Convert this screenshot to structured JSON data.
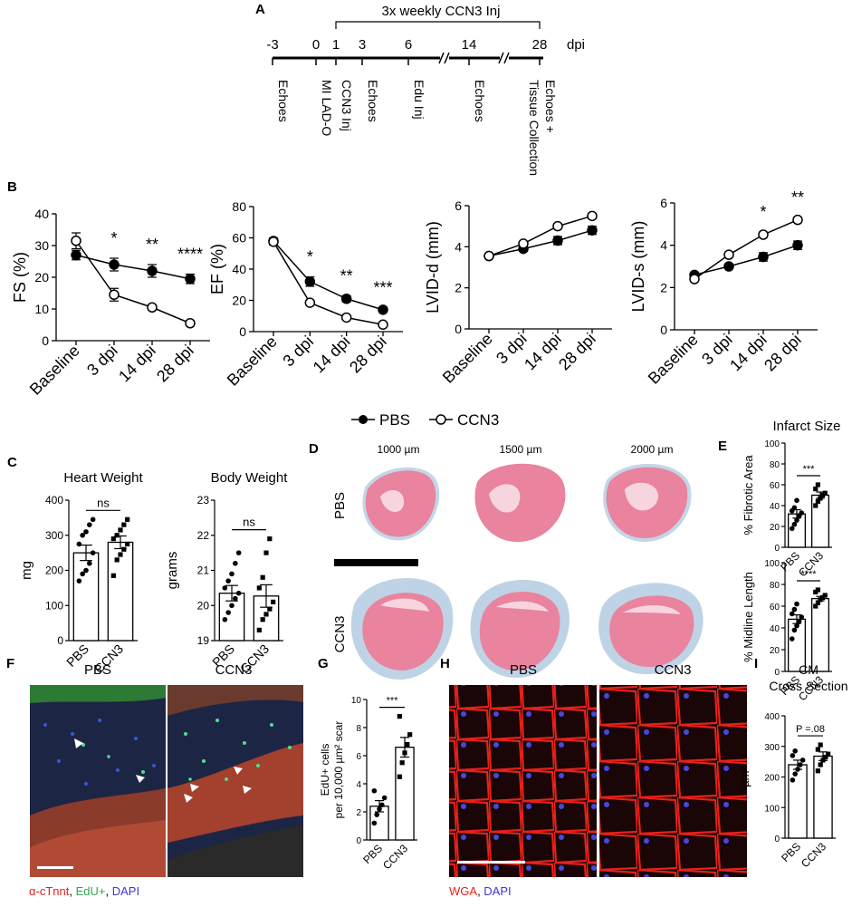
{
  "panels": {
    "A": {
      "letter": "A",
      "header": "3x weekly CCN3 Inj",
      "dpi_unit": "dpi",
      "ticks": [
        "-3",
        "0",
        "1",
        "3",
        "6",
        "14",
        "28"
      ],
      "events": [
        "Echoes",
        "MI LAD-O",
        "CCN3 Inj",
        "Echoes",
        "Edu Inj",
        "Echoes",
        "Echoes +",
        "Tissue Collection"
      ]
    },
    "B": {
      "letter": "B"
    },
    "C": {
      "letter": "C"
    },
    "D": {
      "letter": "D",
      "depths": [
        "1000 µm",
        "1500 µm",
        "2000 µm"
      ],
      "rows": [
        "PBS",
        "CCN3"
      ]
    },
    "E": {
      "letter": "E",
      "title": "Infarct Size"
    },
    "F": {
      "letter": "F",
      "labels": [
        "PBS",
        "CCN3"
      ],
      "stain_a": "α-cTnnt",
      "stain_sep1": ", ",
      "stain_b": "EdU+",
      "stain_sep2": ", ",
      "stain_c": "DAPI"
    },
    "G": {
      "letter": "G"
    },
    "H": {
      "letter": "H",
      "labels": [
        "PBS",
        "CCN3"
      ],
      "stain_a": "WGA",
      "stain_sep": ", ",
      "stain_b": "DAPI"
    },
    "I": {
      "letter": "I",
      "title_line1": "CM",
      "title_line2": "Cross Section"
    }
  },
  "legend": {
    "series": [
      "PBS",
      "CCN3"
    ]
  },
  "colors": {
    "filled": "#000000",
    "open": "#ffffff",
    "he_pink": "#e9839e",
    "fibrosis_blue": "#a9c4de",
    "wga_red": "#e8201a",
    "dapi_blue": "#3a3ad6",
    "edu_green": "#4fe08a"
  },
  "chart_data": [
    {
      "type": "line",
      "panel": "B",
      "ylabel": "FS (%)",
      "categories": [
        "Baseline",
        "3 dpi",
        "14 dpi",
        "28 dpi"
      ],
      "ylim": [
        0,
        40
      ],
      "yticks": [
        "0",
        "10",
        "20",
        "30",
        "40"
      ],
      "series": [
        {
          "name": "PBS",
          "values": [
            27,
            24,
            22,
            19.5
          ],
          "err": [
            1.5,
            2,
            2,
            1.5
          ]
        },
        {
          "name": "CCN3",
          "values": [
            31.5,
            14.5,
            10.5,
            5.5
          ],
          "err": [
            2.5,
            2,
            0.8,
            0.8
          ]
        }
      ],
      "annotations": [
        "",
        "*",
        "**",
        "****"
      ]
    },
    {
      "type": "line",
      "panel": "B",
      "ylabel": "EF (%)",
      "categories": [
        "Baseline",
        "3 dpi",
        "14 dpi",
        "28 dpi"
      ],
      "ylim": [
        0,
        80
      ],
      "yticks": [
        "0",
        "20",
        "40",
        "60",
        "80"
      ],
      "series": [
        {
          "name": "PBS",
          "values": [
            58,
            32,
            21,
            14
          ],
          "err": [
            2,
            3,
            2,
            1.5
          ]
        },
        {
          "name": "CCN3",
          "values": [
            57.5,
            18.5,
            9,
            4.5
          ],
          "err": [
            2,
            1,
            1,
            1
          ]
        }
      ],
      "annotations": [
        "",
        "*",
        "**",
        "***"
      ]
    },
    {
      "type": "line",
      "panel": "B",
      "ylabel": "LVID-d (mm)",
      "categories": [
        "Baseline",
        "3 dpi",
        "14 dpi",
        "28 dpi"
      ],
      "ylim": [
        0,
        6
      ],
      "yticks": [
        "0",
        "2",
        "4",
        "6"
      ],
      "series": [
        {
          "name": "PBS",
          "values": [
            3.55,
            3.9,
            4.3,
            4.8
          ],
          "err": [
            0.08,
            0.12,
            0.2,
            0.2
          ]
        },
        {
          "name": "CCN3",
          "values": [
            3.55,
            4.15,
            5.0,
            5.5
          ],
          "err": [
            0.08,
            0.1,
            0.12,
            0.12
          ]
        }
      ],
      "annotations": [
        "",
        "",
        "",
        ""
      ]
    },
    {
      "type": "line",
      "panel": "B",
      "ylabel": "LVID-s (mm)",
      "categories": [
        "Baseline",
        "3 dpi",
        "14 dpi",
        "28 dpi"
      ],
      "ylim": [
        0,
        6
      ],
      "yticks": [
        "0",
        "2",
        "4",
        "6"
      ],
      "series": [
        {
          "name": "PBS",
          "values": [
            2.6,
            3.0,
            3.45,
            4.0
          ],
          "err": [
            0.1,
            0.1,
            0.2,
            0.2
          ]
        },
        {
          "name": "CCN3",
          "values": [
            2.4,
            3.55,
            4.5,
            5.2
          ],
          "err": [
            0.1,
            0.12,
            0.12,
            0.12
          ]
        }
      ],
      "annotations": [
        "",
        "",
        "*",
        "**"
      ]
    },
    {
      "type": "bar",
      "panel": "C",
      "title": "Heart Weight",
      "ylabel": "mg",
      "categories": [
        "PBS",
        "CCN3"
      ],
      "values": [
        250,
        280
      ],
      "err": [
        22,
        18
      ],
      "ylim": [
        0,
        400
      ],
      "yticks": [
        "0",
        "100",
        "200",
        "300",
        "400"
      ],
      "points": [
        [
          170,
          190,
          200,
          220,
          250,
          275,
          300,
          310,
          330,
          345
        ],
        [
          185,
          230,
          245,
          260,
          275,
          290,
          300,
          315,
          330,
          345
        ]
      ],
      "sig": "ns"
    },
    {
      "type": "bar",
      "panel": "C",
      "title": "Body  Weight",
      "ylabel": "grams",
      "categories": [
        "PBS",
        "CCN3"
      ],
      "values": [
        20.35,
        20.27
      ],
      "err": [
        0.22,
        0.32
      ],
      "ylim": [
        19,
        23
      ],
      "yticks": [
        "19",
        "20",
        "21",
        "22",
        "23"
      ],
      "points": [
        [
          19.6,
          19.8,
          20.0,
          20.2,
          20.35,
          20.5,
          20.7,
          20.9,
          21.2,
          21.5
        ],
        [
          19.3,
          19.6,
          19.75,
          19.9,
          20.1,
          20.5,
          20.8,
          21.5,
          21.9
        ]
      ],
      "sig": "ns"
    },
    {
      "type": "bar",
      "panel": "E",
      "ylabel": "% Fibrotic Area",
      "categories": [
        "PBS",
        "CCN3"
      ],
      "values": [
        32,
        50
      ],
      "err": [
        4,
        3
      ],
      "ylim": [
        0,
        100
      ],
      "yticks": [
        "0",
        "20",
        "40",
        "60",
        "80",
        "100"
      ],
      "points": [
        [
          18,
          22,
          26,
          30,
          33,
          35,
          38,
          45
        ],
        [
          40,
          44,
          47,
          50,
          52,
          56,
          60
        ]
      ],
      "sig": "***"
    },
    {
      "type": "bar",
      "panel": "E",
      "ylabel": "% Midline Length",
      "categories": [
        "PBS",
        "CCN3"
      ],
      "values": [
        48,
        67
      ],
      "err": [
        4,
        2
      ],
      "ylim": [
        0,
        100
      ],
      "yticks": [
        "0",
        "20",
        "40",
        "60",
        "80",
        "100"
      ],
      "points": [
        [
          30,
          38,
          42,
          46,
          50,
          53,
          57,
          62
        ],
        [
          60,
          63,
          66,
          68,
          70,
          73,
          75
        ]
      ],
      "sig": "****"
    },
    {
      "type": "bar",
      "panel": "G",
      "ylabel": "EdU+ cells per 10,000 µm² scar",
      "ylabel_line1": "EdU+ cells",
      "ylabel_line2": "per 10,000 µm² scar",
      "categories": [
        "PBS",
        "CCN3"
      ],
      "values": [
        2.4,
        6.6
      ],
      "err": [
        0.4,
        0.7
      ],
      "ylim": [
        0,
        10
      ],
      "yticks": [
        "0",
        "2",
        "4",
        "6",
        "8",
        "10"
      ],
      "points": [
        [
          1.2,
          1.8,
          2.2,
          2.5,
          3.0,
          3.5
        ],
        [
          4.5,
          5.5,
          6.2,
          6.8,
          7.5,
          8.8
        ]
      ],
      "sig": "***"
    },
    {
      "type": "bar",
      "panel": "I",
      "ylabel": "µm²",
      "categories": [
        "PBS",
        "CCN3"
      ],
      "values": [
        240,
        268
      ],
      "err": [
        15,
        14
      ],
      "ylim": [
        0,
        400
      ],
      "yticks": [
        "0",
        "100",
        "200",
        "300",
        "400"
      ],
      "points": [
        [
          190,
          210,
          225,
          240,
          255,
          270,
          285
        ],
        [
          220,
          240,
          255,
          265,
          275,
          290,
          305
        ]
      ],
      "sig": "P =.08"
    }
  ]
}
